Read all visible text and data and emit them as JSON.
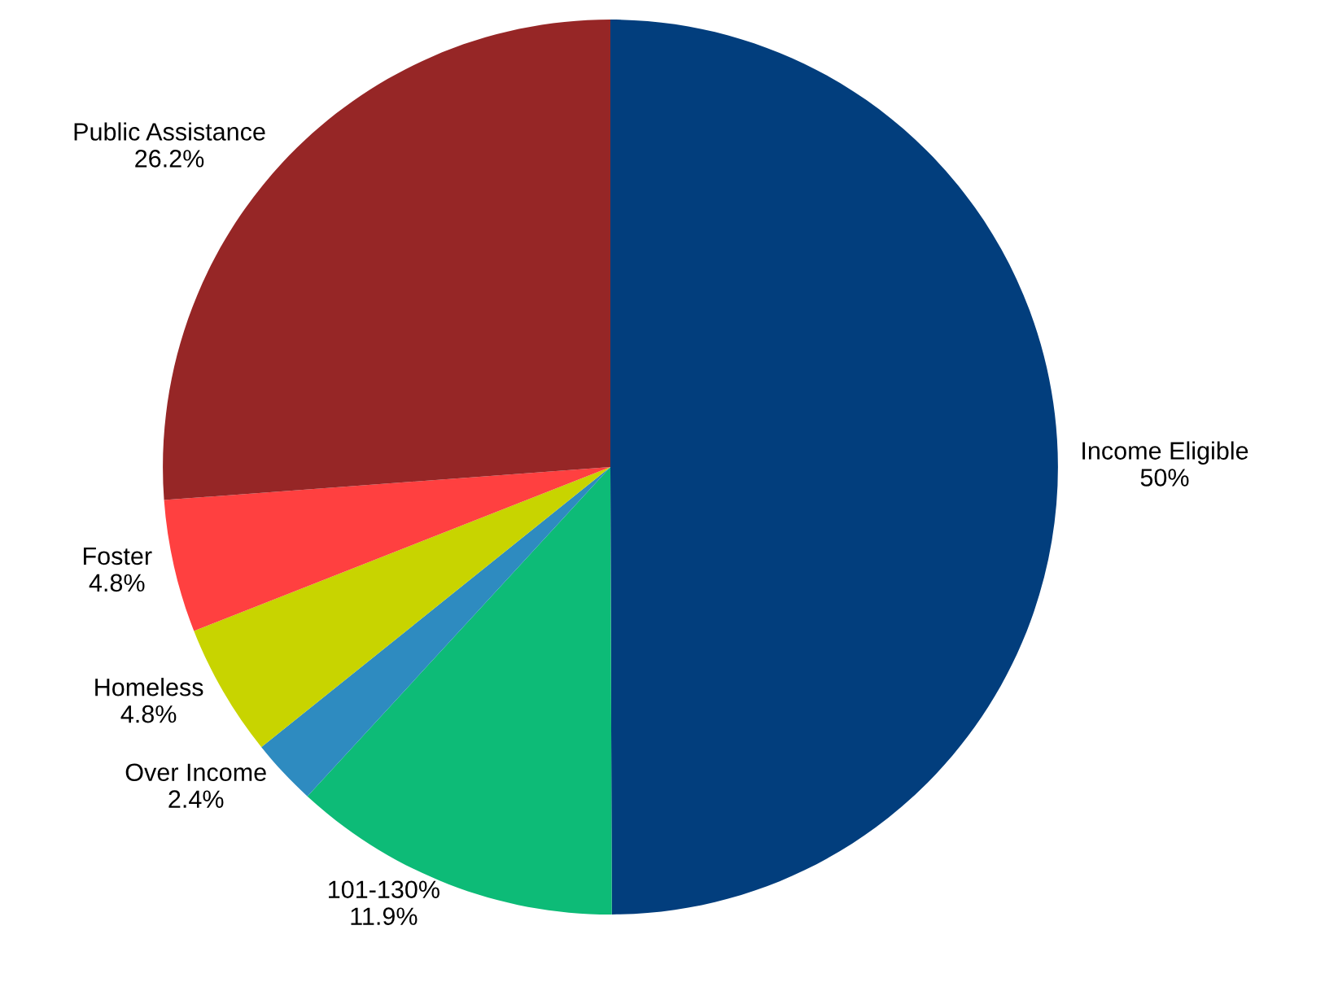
{
  "chart_data": {
    "type": "pie",
    "categories": [
      "Income Eligible",
      "101-130%",
      "Over Income",
      "Homeless",
      "Foster",
      "Public Assistance"
    ],
    "values": [
      50,
      11.9,
      2.4,
      4.8,
      4.8,
      26.2
    ],
    "colors": [
      "#023e7d",
      "#0dbb77",
      "#2e8bc0",
      "#c8d400",
      "#ff4040",
      "#962626"
    ],
    "value_labels": [
      "50%",
      "11.9%",
      "2.4%",
      "4.8%",
      "4.8%",
      "26.2%"
    ]
  }
}
